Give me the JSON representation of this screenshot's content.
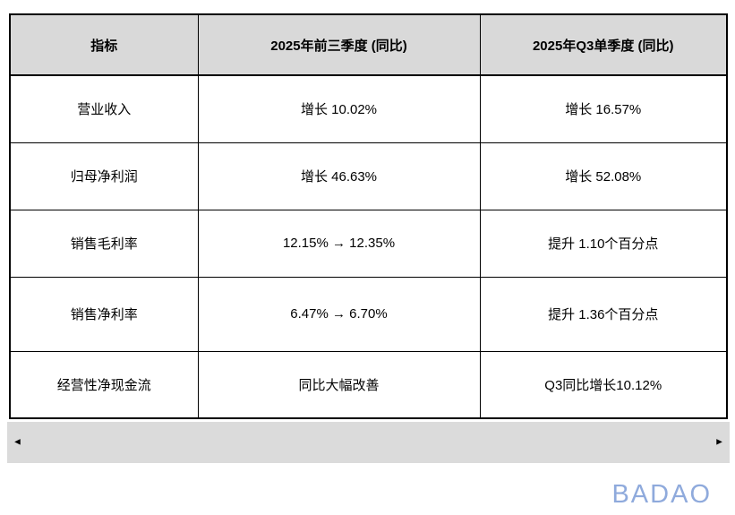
{
  "table": {
    "headers": [
      "指标",
      "2025年前三季度 (同比)",
      "2025年Q3单季度 (同比)"
    ],
    "rows": [
      [
        "营业收入",
        "增长 10.02%",
        "增长 16.57%"
      ],
      [
        "归母净利润",
        "增长 46.63%",
        "增长 52.08%"
      ],
      [
        "销售毛利率",
        "12.15% → 12.35%",
        "提升 1.10个百分点"
      ],
      [
        "销售净利率",
        "6.47% → 6.70%",
        "提升 1.36个百分点"
      ],
      [
        "经营性净现金流",
        "同比大幅改善",
        "Q3同比增长10.12%"
      ]
    ]
  },
  "scrollbar": {
    "left_arrow": "◄",
    "right_arrow": "►"
  },
  "watermark": {
    "text": "BADAO",
    "color": "#8faadc"
  },
  "colors": {
    "header_bg": "#d9d9d9",
    "scrollbar_bg": "#dbdbdb",
    "border": "#000000",
    "page_bg": "#ffffff"
  }
}
